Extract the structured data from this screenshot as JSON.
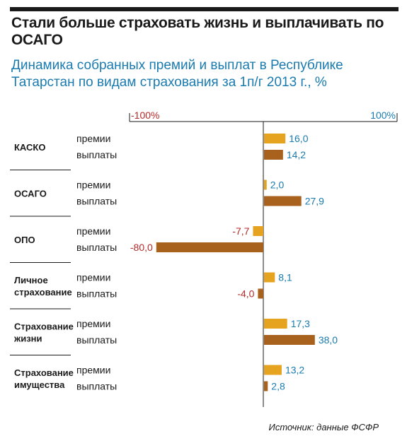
{
  "title": "Стали больше страховать жизнь и выплачивать по ОСАГО",
  "subtitle": "Динамика собранных премий и выплат в Республике Татарстан  по видам страхования за 1п/г 2013 г., %",
  "source": "Источник: данные ФСФР",
  "colors": {
    "premii": "#e6a320",
    "vyplaty": "#a8621e",
    "negative_label": "#b52a2a",
    "positive_label": "#1a7bb0",
    "title": "#1a1a1a",
    "subtitle": "#1a7bb0"
  },
  "chart_data": {
    "type": "bar",
    "orientation": "horizontal",
    "axis": {
      "min": -100,
      "max": 100,
      "min_label": "-100%",
      "max_label": "100%"
    },
    "series_names": [
      "премии",
      "выплаты"
    ],
    "categories": [
      {
        "label_lines": [
          "КАСКО"
        ],
        "values": [
          16.0,
          14.2
        ],
        "value_labels": [
          "16,0",
          "14,2"
        ]
      },
      {
        "label_lines": [
          "ОСАГО"
        ],
        "values": [
          2.0,
          27.9
        ],
        "value_labels": [
          "2,0",
          "27,9"
        ]
      },
      {
        "label_lines": [
          "ОПО"
        ],
        "values": [
          -7.7,
          -80.0
        ],
        "value_labels": [
          "-7,7",
          "-80,0"
        ]
      },
      {
        "label_lines": [
          "Личное",
          "страхование"
        ],
        "values": [
          8.1,
          -4.0
        ],
        "value_labels": [
          "8,1",
          "-4,0"
        ]
      },
      {
        "label_lines": [
          "Страхование",
          "жизни"
        ],
        "values": [
          17.3,
          38.0
        ],
        "value_labels": [
          "17,3",
          "38,0"
        ]
      },
      {
        "label_lines": [
          "Страхование",
          "имущества"
        ],
        "values": [
          13.2,
          2.8
        ],
        "value_labels": [
          "13,2",
          "2,8"
        ]
      }
    ]
  }
}
